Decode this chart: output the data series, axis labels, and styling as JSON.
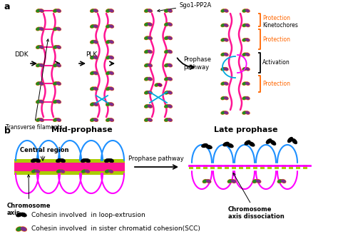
{
  "title_a": "a",
  "title_b": "b",
  "label_ddk": "DDK",
  "label_plk": "PLK",
  "label_transverse": "Transverse filaments",
  "label_sgo1": "Sgo1-PP2A",
  "label_prophase_pathway_a": "Prophase\npathway",
  "label_protection_top": "Protection",
  "label_kinetochores": "Kinetochores",
  "label_protection_mid": "Protection",
  "label_activation": "Activation",
  "label_protection_bot": "Protection",
  "label_mid_prophase": "Mid-prophase",
  "label_late_prophase": "Late prophase",
  "label_central_region": "Central region",
  "label_chromosome_axis": "Chromosome\naxis",
  "label_prophase_pathway_b": "Prophase pathway",
  "label_chromosome_axis_dissociation": "Chromosome\naxis dissociation",
  "label_cohesin_loop": "Cohesin involved  in loop-extrusion",
  "label_cohesin_scc": "Cohesin involved  in sister chromatid cohesion(SCC)",
  "bg": "#ffffff",
  "c_pink": "#FF1493",
  "c_magenta": "#FF00FF",
  "c_green": "#228B22",
  "c_purple": "#7B2D8B",
  "c_orange": "#FF6600",
  "c_red": "#FF0000",
  "c_cyan": "#00AADD",
  "c_black": "#000000",
  "c_lime": "#90EE90",
  "c_yellow_green": "#AACC00"
}
